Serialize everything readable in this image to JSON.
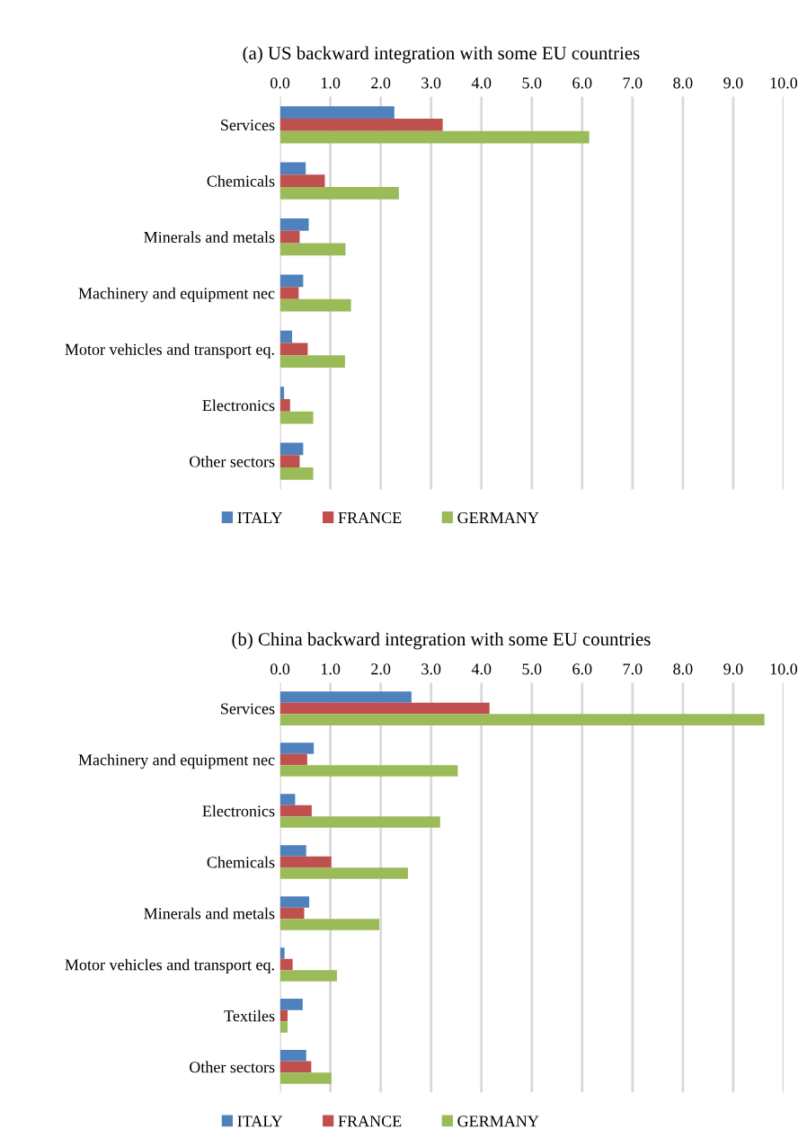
{
  "chart_data": [
    {
      "type": "bar",
      "orientation": "horizontal",
      "title": "(a) US backward integration with some EU countries",
      "categories": [
        "Services",
        "Chemicals",
        "Minerals and metals",
        "Machinery and equipment nec",
        "Motor vehicles and transport eq.",
        "Electronics",
        "Other sectors"
      ],
      "series": [
        {
          "name": "ITALY",
          "color": "#4f81bd",
          "values": [
            2.27,
            0.51,
            0.57,
            0.46,
            0.24,
            0.08,
            0.46
          ]
        },
        {
          "name": "FRANCE",
          "color": "#c0504d",
          "values": [
            3.23,
            0.89,
            0.39,
            0.37,
            0.55,
            0.2,
            0.39
          ]
        },
        {
          "name": "GERMANY",
          "color": "#9bbb59",
          "values": [
            6.14,
            2.36,
            1.3,
            1.41,
            1.29,
            0.66,
            0.66
          ]
        }
      ],
      "xlim": [
        0,
        10
      ],
      "xticks": [
        {
          "value": 0,
          "label": "0.0"
        },
        {
          "value": 1,
          "label": "1.0"
        },
        {
          "value": 2,
          "label": "2.0"
        },
        {
          "value": 3,
          "label": "3.0"
        },
        {
          "value": 4,
          "label": "4.0"
        },
        {
          "value": 5,
          "label": "5.0"
        },
        {
          "value": 6,
          "label": "6.0"
        },
        {
          "value": 7,
          "label": "7.0"
        },
        {
          "value": 8,
          "label": "8.0"
        },
        {
          "value": 9,
          "label": "9.0"
        },
        {
          "value": 10,
          "label": "10.0"
        }
      ],
      "grid": "x",
      "legend": "bottom"
    },
    {
      "type": "bar",
      "orientation": "horizontal",
      "title": "(b) China backward integration with some EU countries",
      "categories": [
        "Services",
        "Machinery and equipment nec",
        "Electronics",
        "Chemicals",
        "Minerals and metals",
        "Motor vehicles and transport eq.",
        "Textiles",
        "Other sectors"
      ],
      "series": [
        {
          "name": "ITALY",
          "color": "#4f81bd",
          "values": [
            2.61,
            0.67,
            0.3,
            0.52,
            0.58,
            0.09,
            0.45,
            0.52
          ]
        },
        {
          "name": "FRANCE",
          "color": "#c0504d",
          "values": [
            4.16,
            0.54,
            0.63,
            1.02,
            0.48,
            0.25,
            0.15,
            0.62
          ]
        },
        {
          "name": "GERMANY",
          "color": "#9bbb59",
          "values": [
            9.62,
            3.53,
            3.18,
            2.54,
            1.97,
            1.13,
            0.15,
            1.02
          ]
        }
      ],
      "xlim": [
        0,
        10
      ],
      "xticks": [
        {
          "value": 0,
          "label": "0.0"
        },
        {
          "value": 1,
          "label": "1.0"
        },
        {
          "value": 2,
          "label": "2.0"
        },
        {
          "value": 3,
          "label": "3.0"
        },
        {
          "value": 4,
          "label": "4.0"
        },
        {
          "value": 5,
          "label": "5.0"
        },
        {
          "value": 6,
          "label": "6.0"
        },
        {
          "value": 7,
          "label": "7.0"
        },
        {
          "value": 8,
          "label": "8.0"
        },
        {
          "value": 9,
          "label": "9.0"
        },
        {
          "value": 10,
          "label": "10.0"
        }
      ],
      "grid": "x",
      "legend": "bottom"
    }
  ]
}
